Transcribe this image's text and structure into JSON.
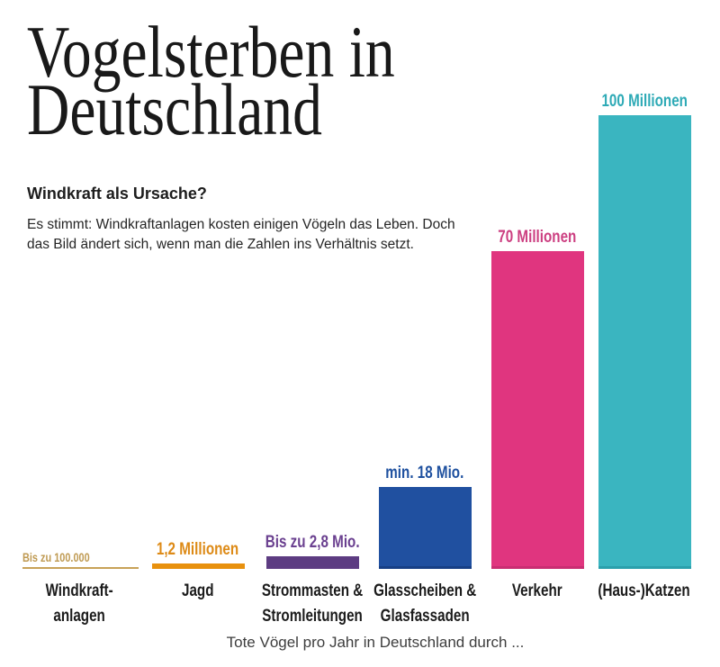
{
  "page": {
    "title_line1": "Vogelsterben in",
    "title_line2": "Deutschland",
    "intro_heading": "Windkraft als Ursache?",
    "intro_line1": "Es stimmt: Windkraftanlagen kosten einigen Vögeln das Leben. Doch",
    "intro_line2": "das Bild ändert sich, wenn man die Zahlen ins Verhältnis setzt.",
    "caption": "Tote Vögel pro Jahr in Deutschland durch ...",
    "background_color": "#ffffff",
    "text_color": "#1b1b1b"
  },
  "chart_data": {
    "type": "bar",
    "title": "Vogelsterben in Deutschland",
    "subtitle": "Windkraft als Ursache?",
    "xlabel": "Tote Vögel pro Jahr in Deutschland durch ...",
    "ylabel": "",
    "unit": "Millionen tote Vögel pro Jahr",
    "ylim": [
      0,
      100
    ],
    "grid": false,
    "legend": "none",
    "categories": [
      "Windkraft-anlagen",
      "Jagd",
      "Strommasten & Stromleitungen",
      "Glasscheiben & Glasfassaden",
      "Verkehr",
      "(Haus-)Katzen"
    ],
    "values": [
      0.1,
      1.2,
      2.8,
      18,
      70,
      100
    ],
    "bars": [
      {
        "id": "windkraft",
        "category": "Windkraft-\nanlagen",
        "value_label": "Bis zu 100.000",
        "value_millions": 0.1,
        "bar_color": "#c8a258",
        "label_color": "#bf9a52"
      },
      {
        "id": "jagd",
        "category": "Jagd",
        "value_label": "1,2 Millionen",
        "value_millions": 1.2,
        "bar_color": "#e8910e",
        "label_color": "#dd8a16"
      },
      {
        "id": "strommasten",
        "category": "Strommasten &\nStromleitungen",
        "value_label": "Bis zu 2,8 Mio.",
        "value_millions": 2.8,
        "bar_color": "#5d3c82",
        "label_color": "#6b4190"
      },
      {
        "id": "glasscheiben",
        "category": "Glasscheiben &\nGlasfassaden",
        "value_label": "min. 18 Mio.",
        "value_millions": 18,
        "bar_color": "#2050a0",
        "edge_color": "#173f85",
        "label_color": "#1e509f"
      },
      {
        "id": "verkehr",
        "category": "Verkehr",
        "value_label": "70 Millionen",
        "value_millions": 70,
        "bar_color": "#e0357f",
        "edge_color": "#c92e72",
        "label_color": "#cc3f81"
      },
      {
        "id": "katzen",
        "category": "(Haus-)Katzen",
        "value_label": "100 Millionen",
        "value_millions": 100,
        "bar_color": "#3ab5c0",
        "edge_color": "#2ba0ac",
        "label_color": "#2eaab6"
      }
    ]
  }
}
